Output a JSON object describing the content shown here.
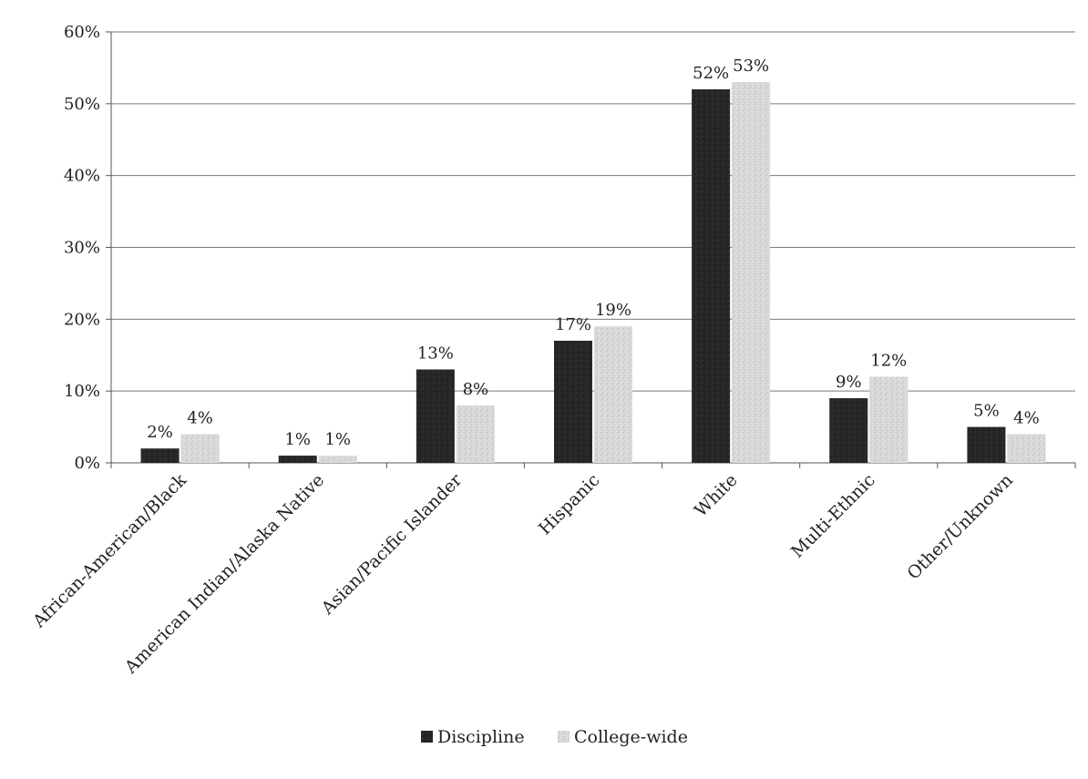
{
  "chart_data": {
    "type": "bar",
    "title": "",
    "xlabel": "",
    "ylabel": "",
    "categories": [
      "African-American/Black",
      "American Indian/Alaska Native",
      "Asian/Pacific Islander",
      "Hispanic",
      "White",
      "Multi-Ethnic",
      "Other/Unknown"
    ],
    "series": [
      {
        "name": "Discipline",
        "color": "#262626",
        "values": [
          2,
          1,
          13,
          17,
          52,
          9,
          5
        ],
        "labels": [
          "2%",
          "1%",
          "13%",
          "17%",
          "52%",
          "9%",
          "5%"
        ]
      },
      {
        "name": "College-wide",
        "color": "#d6d6d6",
        "values": [
          4,
          1,
          8,
          19,
          53,
          12,
          4
        ],
        "labels": [
          "4%",
          "1%",
          "8%",
          "19%",
          "53%",
          "12%",
          "4%"
        ]
      }
    ],
    "ylim": [
      0,
      60
    ],
    "yticks": [
      "0%",
      "10%",
      "20%",
      "30%",
      "40%",
      "50%",
      "60%"
    ],
    "grid": true,
    "legend_position": "bottom"
  }
}
